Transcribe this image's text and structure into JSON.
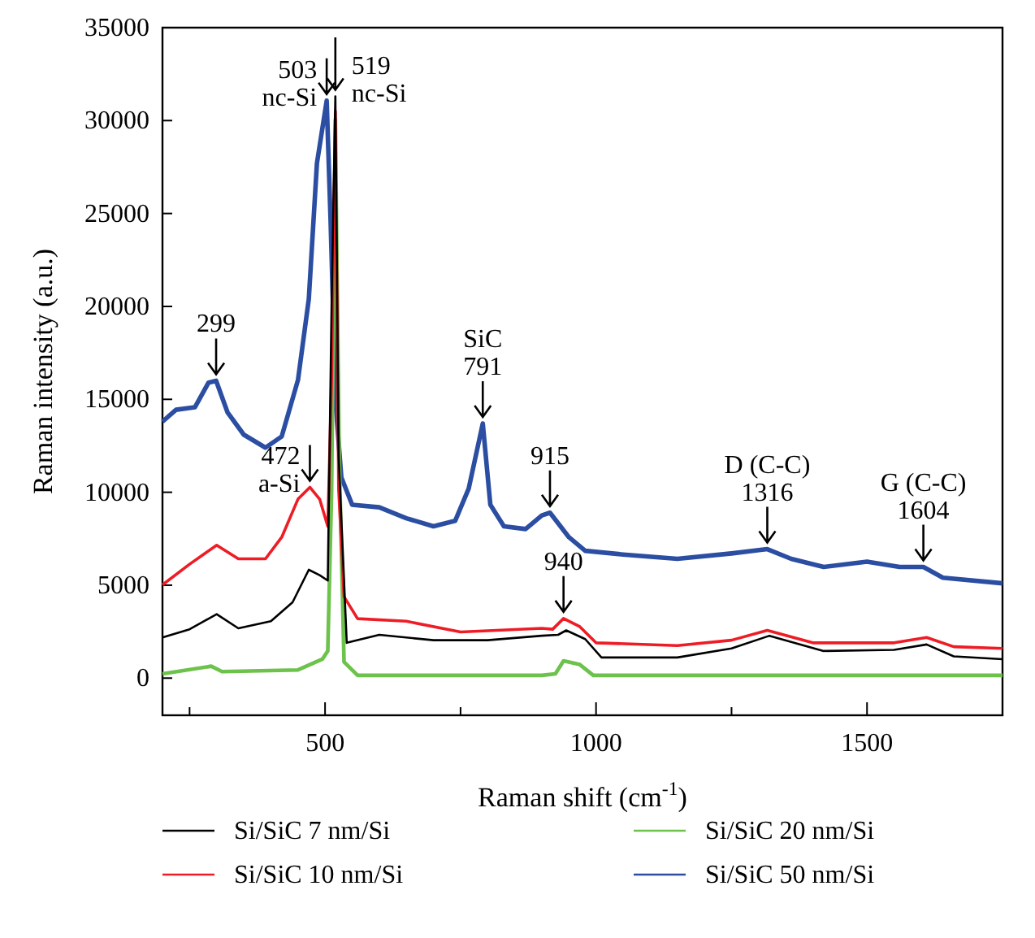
{
  "chart_data": {
    "type": "line",
    "xlabel": "Raman shift (cm$^{-1}$)",
    "ylabel": "Raman intensity (a.u.)",
    "xlim": [
      200,
      1750
    ],
    "xticks": [
      {
        "value": 250,
        "label": null
      },
      500,
      {
        "value": 750,
        "label": null
      },
      1000,
      {
        "value": 1250,
        "label": null
      },
      1500
    ],
    "ylim": [
      -2000,
      35000
    ],
    "yticks": [
      0,
      5000,
      10000,
      15000,
      20000,
      25000,
      30000,
      35000
    ],
    "grid": false,
    "legend": "bottom",
    "marker": "none",
    "line_style": "solid",
    "series": [
      {
        "name": "Si/SiC 7 nm/Si",
        "color": "#000000",
        "x": [
          200,
          250,
          300,
          340,
          400,
          440,
          470,
          490,
          505,
          512,
          519,
          525,
          540,
          600,
          700,
          800,
          900,
          930,
          945,
          980,
          1010,
          1150,
          1250,
          1320,
          1420,
          1550,
          1610,
          1660,
          1750
        ],
        "values": [
          2190,
          2630,
          3440,
          2680,
          3060,
          4080,
          5830,
          5540,
          5250,
          20000,
          31300,
          12000,
          1900,
          2330,
          2040,
          2040,
          2280,
          2330,
          2570,
          2100,
          1110,
          1110,
          1600,
          2280,
          1460,
          1520,
          1810,
          1170,
          1020
        ]
      },
      {
        "name": "Si/SiC 10 nm/Si",
        "color": "#ee1c25",
        "x": [
          200,
          250,
          300,
          340,
          390,
          420,
          450,
          472,
          490,
          505,
          512,
          519,
          525,
          535,
          560,
          650,
          750,
          900,
          920,
          940,
          970,
          1000,
          1150,
          1250,
          1316,
          1400,
          1550,
          1610,
          1660,
          1750
        ],
        "values": [
          5020,
          6130,
          7150,
          6420,
          6420,
          7580,
          9630,
          10270,
          9630,
          8170,
          16000,
          30500,
          10200,
          4380,
          3200,
          3060,
          2480,
          2680,
          2630,
          3210,
          2770,
          1900,
          1750,
          2040,
          2570,
          1900,
          1900,
          2190,
          1690,
          1600
        ]
      },
      {
        "name": "Si/SiC 20 nm/Si",
        "color": "#6cc24a",
        "x": [
          200,
          290,
          310,
          450,
          495,
          505,
          512,
          519,
          526,
          535,
          560,
          900,
          925,
          940,
          970,
          995,
          1750
        ],
        "values": [
          230,
          640,
          350,
          440,
          1020,
          1460,
          10000,
          30040,
          12000,
          870,
          150,
          150,
          230,
          930,
          730,
          150,
          150
        ]
      },
      {
        "name": "Si/SiC 50 nm/Si",
        "color": "#2b4ea2",
        "x": [
          200,
          225,
          260,
          285,
          299,
          320,
          350,
          390,
          420,
          450,
          470,
          485,
          503,
          510,
          520,
          530,
          550,
          600,
          650,
          700,
          740,
          765,
          791,
          805,
          830,
          870,
          900,
          915,
          950,
          980,
          1050,
          1150,
          1250,
          1316,
          1360,
          1420,
          1500,
          1560,
          1604,
          1640,
          1750
        ],
        "values": [
          13800,
          14440,
          14580,
          15900,
          16000,
          14300,
          13100,
          12400,
          13000,
          16040,
          20400,
          27700,
          31070,
          24800,
          14600,
          10800,
          9330,
          9190,
          8600,
          8170,
          8460,
          10200,
          13700,
          9330,
          8170,
          8020,
          8750,
          8900,
          7580,
          6850,
          6650,
          6420,
          6710,
          6940,
          6420,
          5980,
          6270,
          5980,
          5980,
          5400,
          5100
        ]
      }
    ],
    "annotations": [
      {
        "text": "299",
        "x": 299,
        "y": 16000
      },
      {
        "text": "472\na-Si",
        "x": 472,
        "y": 10270
      },
      {
        "text": "503\nnc-Si",
        "x": 503,
        "y": 31070
      },
      {
        "text": "519\nnc-Si",
        "x": 519,
        "y": 31300
      },
      {
        "text": "SiC\n791",
        "x": 791,
        "y": 13700
      },
      {
        "text": "915",
        "x": 915,
        "y": 8900
      },
      {
        "text": "940",
        "x": 940,
        "y": 3210
      },
      {
        "text": "D (C-C)\n1316",
        "x": 1316,
        "y": 6940
      },
      {
        "text": "G (C-C)\n1604",
        "x": 1604,
        "y": 5980
      }
    ]
  }
}
